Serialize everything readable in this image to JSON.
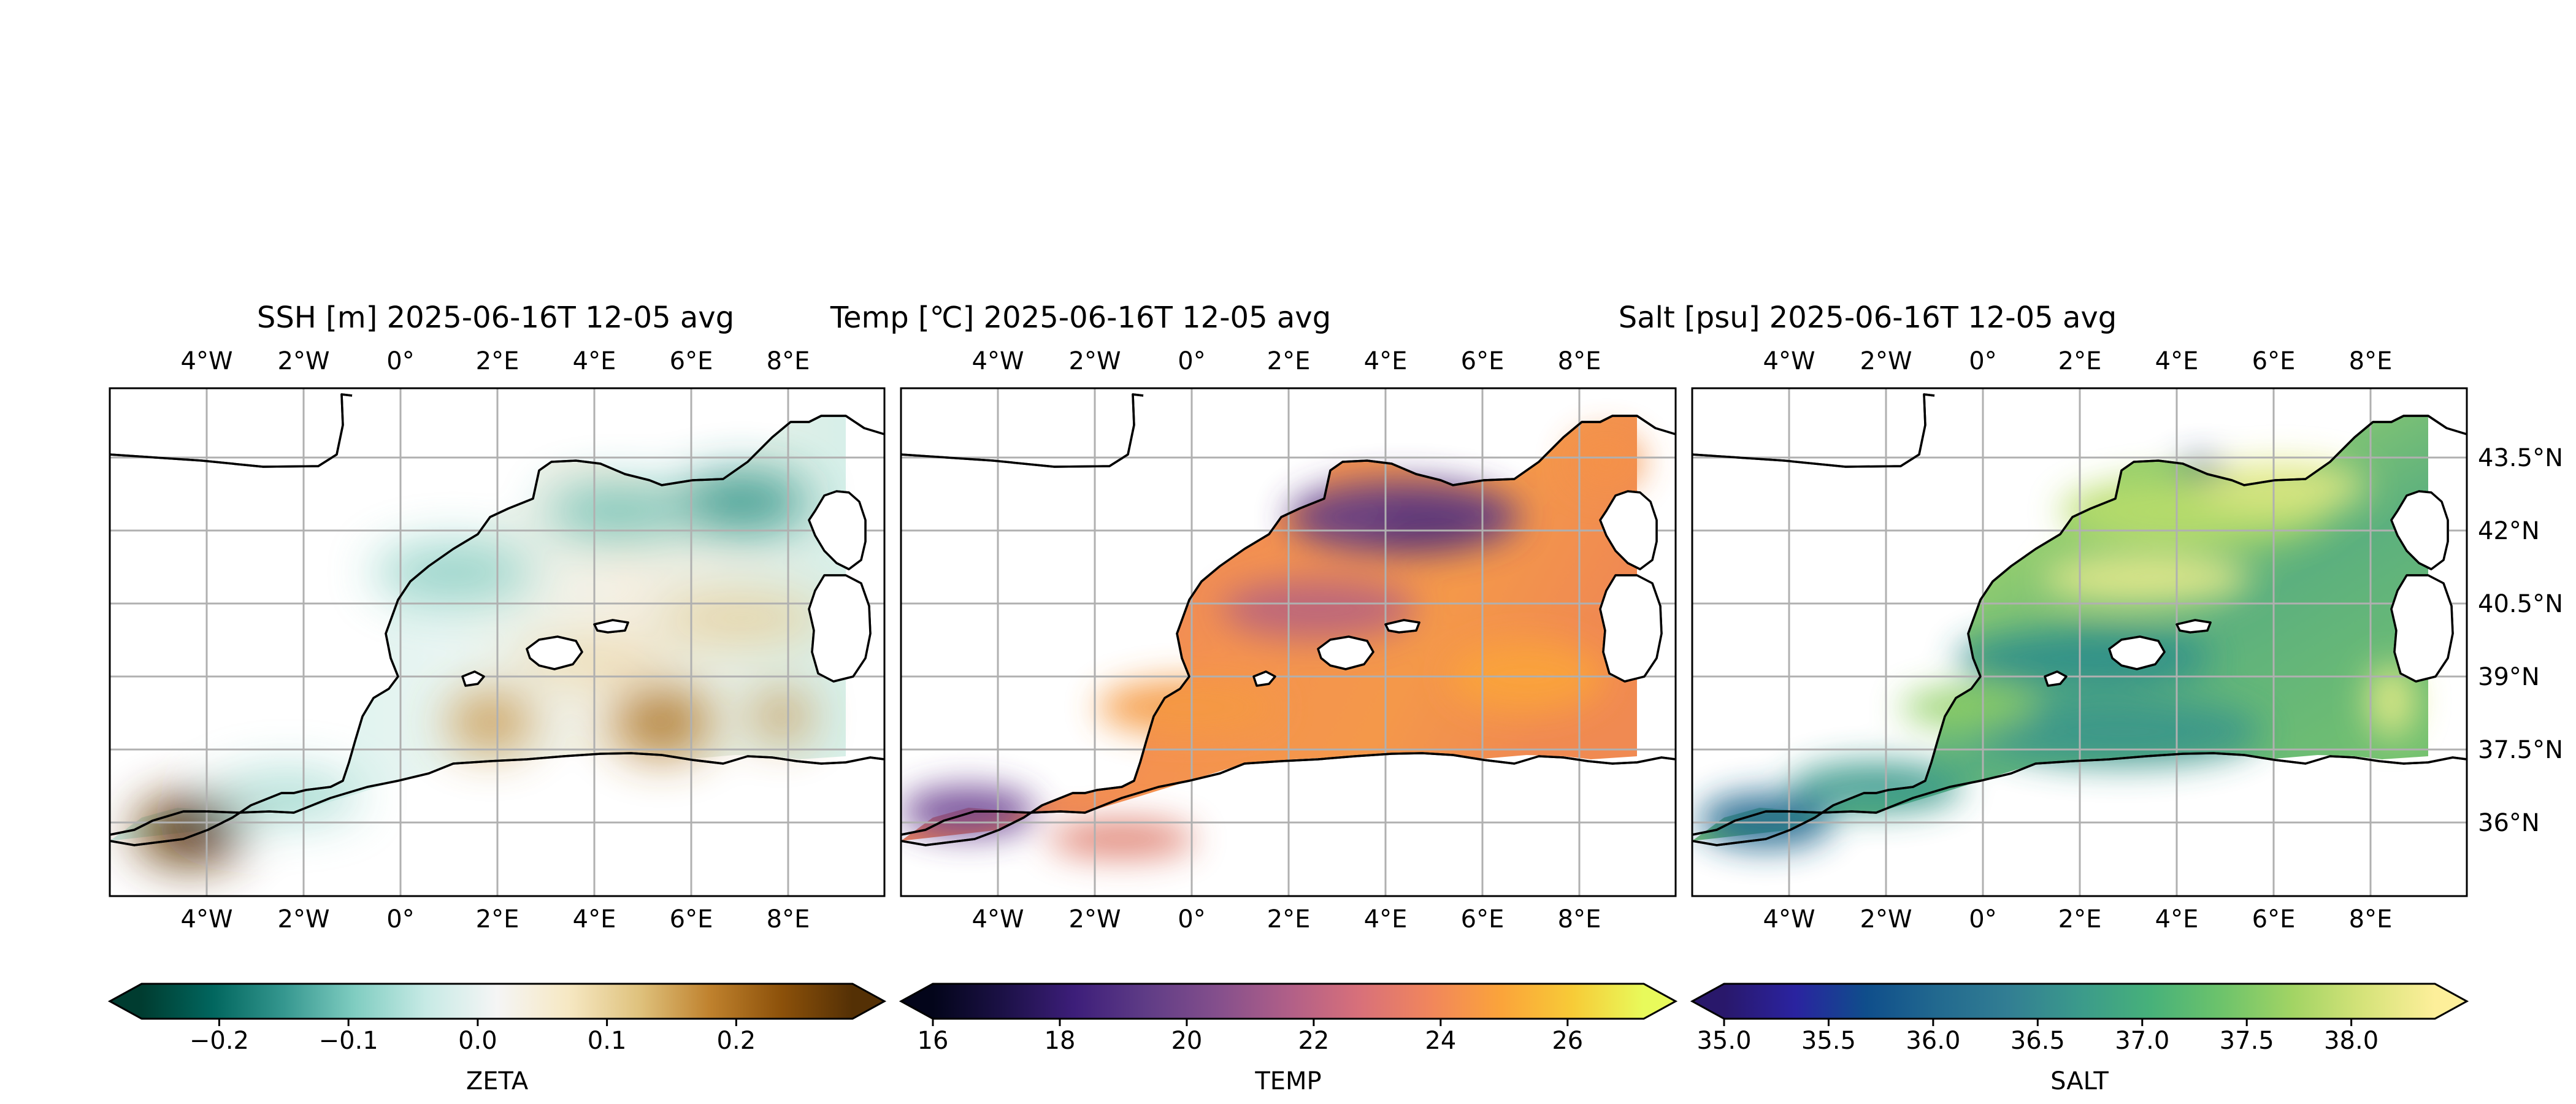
{
  "panels": [
    {
      "title": "SSH [m] 2025-06-16T 12-05 avg",
      "colorbar": {
        "label": "ZETA",
        "range": [
          -0.26,
          0.29
        ],
        "ticks": [
          -0.2,
          -0.1,
          0.0,
          0.1,
          0.2
        ],
        "tick_labels": [
          "−0.2",
          "−0.1",
          "0.0",
          "0.1",
          "0.2"
        ],
        "stops": [
          "#003c30",
          "#01665e",
          "#35978f",
          "#80cdc1",
          "#c7eae5",
          "#f5f5f5",
          "#f6e8c3",
          "#dfc27d",
          "#bf812d",
          "#8c510a",
          "#543005"
        ],
        "extend": "both"
      },
      "show_lat_labels": false
    },
    {
      "title": "Temp [℃] 2025-06-16T 12-05 avg",
      "colorbar": {
        "label": "TEMP",
        "range": [
          16,
          27.2
        ],
        "ticks": [
          16,
          18,
          20,
          22,
          24,
          26
        ],
        "tick_labels": [
          "16",
          "18",
          "20",
          "22",
          "24",
          "26"
        ],
        "stops": [
          "#03051a",
          "#1c1147",
          "#3d1e7a",
          "#5f3c86",
          "#844f8c",
          "#b05f88",
          "#d8707a",
          "#f1865c",
          "#fba43a",
          "#f7cb37",
          "#e8fa5b"
        ],
        "extend": "both"
      },
      "show_lat_labels": false
    },
    {
      "title": "Salt [psu] 2025-06-16T 12-05 avg",
      "colorbar": {
        "label": "SALT",
        "range": [
          35.0,
          38.4
        ],
        "ticks": [
          35.0,
          35.5,
          36.0,
          36.5,
          37.0,
          37.5,
          38.0
        ],
        "tick_labels": [
          "35.0",
          "35.5",
          "36.0",
          "36.5",
          "37.0",
          "37.5",
          "38.0"
        ],
        "stops": [
          "#29186b",
          "#2a23a0",
          "#0f4e8b",
          "#22698f",
          "#327e93",
          "#3b9a8b",
          "#47b17a",
          "#6dc36b",
          "#a2d464",
          "#d6e37a",
          "#fdef9a"
        ],
        "extend": "both"
      },
      "show_lat_labels": true
    }
  ],
  "lon_labels": [
    "4°W",
    "2°W",
    "0°",
    "2°E",
    "4°E",
    "6°E",
    "8°E"
  ],
  "lat_labels": [
    "43.5°N",
    "42°N",
    "40.5°N",
    "39°N",
    "37.5°N",
    "36°N"
  ]
}
